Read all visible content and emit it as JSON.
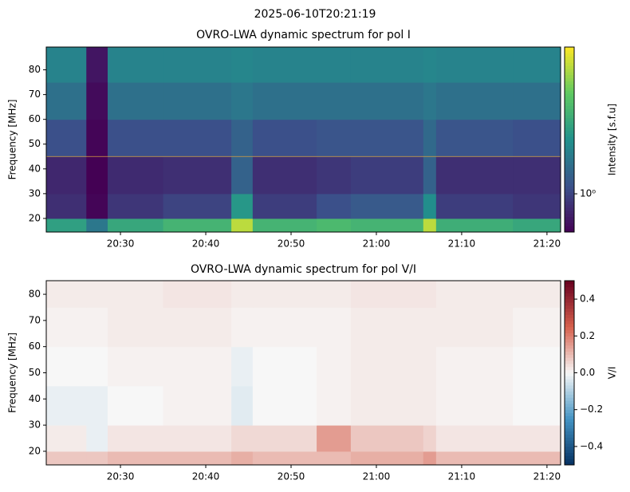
{
  "title": "2025-06-10T20:21:19",
  "chart_data": [
    {
      "type": "heatmap",
      "title": "OVRO-LWA dynamic spectrum for pol I",
      "ylabel": "Frequency [MHz]",
      "clabel": "Intensity [s.f.u]",
      "colormap": "viridis",
      "log_color": true,
      "clim": [
        0.6,
        7.1
      ],
      "cticks": [
        {
          "value": 1,
          "label": "10⁰"
        }
      ],
      "xlim": [
        21.3,
        81.6
      ],
      "ylim": [
        14.5,
        89.2
      ],
      "xticks": [
        {
          "value": 30,
          "label": "20:30"
        },
        {
          "value": 40,
          "label": "20:40"
        },
        {
          "value": 50,
          "label": "20:50"
        },
        {
          "value": 60,
          "label": "21:00"
        },
        {
          "value": 70,
          "label": "21:10"
        },
        {
          "value": 80,
          "label": "21:20"
        }
      ],
      "yticks": [
        20,
        30,
        40,
        50,
        60,
        70,
        80
      ],
      "hline": 45,
      "hline_color": "#d8a040",
      "x": [
        21.3,
        26,
        28.5,
        35,
        43,
        45.5,
        53,
        57,
        65.5,
        67,
        76,
        81.6
      ],
      "y": [
        14.5,
        20,
        30,
        45,
        60,
        75,
        89.2
      ],
      "values": [
        [
          2.4,
          1.6,
          2.6,
          3.0,
          5.5,
          3.0,
          3.2,
          3.0,
          5.5,
          2.8,
          2.6
        ],
        [
          0.85,
          0.62,
          0.9,
          1.0,
          2.2,
          0.95,
          1.1,
          1.2,
          2.0,
          0.95,
          0.9
        ],
        [
          0.8,
          0.6,
          0.82,
          0.85,
          1.3,
          0.85,
          0.9,
          0.95,
          1.3,
          0.85,
          0.85
        ],
        [
          1.1,
          0.62,
          1.1,
          1.1,
          1.3,
          1.1,
          1.15,
          1.15,
          1.4,
          1.15,
          1.1
        ],
        [
          1.5,
          0.65,
          1.5,
          1.5,
          1.6,
          1.5,
          1.5,
          1.5,
          1.6,
          1.5,
          1.5
        ],
        [
          1.8,
          0.7,
          1.8,
          1.8,
          1.85,
          1.8,
          1.8,
          1.8,
          1.85,
          1.8,
          1.8
        ]
      ]
    },
    {
      "type": "heatmap",
      "title": "OVRO-LWA dynamic spectrum for pol V/I",
      "ylabel": "Frequency [MHz]",
      "clabel": "V/I",
      "colormap": "RdBu_r",
      "log_color": false,
      "clim": [
        -0.5,
        0.5
      ],
      "cticks": [
        {
          "value": -0.4,
          "label": "−0.4"
        },
        {
          "value": -0.2,
          "label": "−0.2"
        },
        {
          "value": 0,
          "label": "0.0"
        },
        0.2,
        0.4
      ],
      "xlim": [
        21.3,
        81.6
      ],
      "ylim": [
        14.8,
        85.2
      ],
      "xticks": [
        {
          "value": 30,
          "label": "20:30"
        },
        {
          "value": 40,
          "label": "20:40"
        },
        {
          "value": 50,
          "label": "20:50"
        },
        {
          "value": 60,
          "label": "21:00"
        },
        {
          "value": 70,
          "label": "21:10"
        },
        {
          "value": 80,
          "label": "21:20"
        }
      ],
      "yticks": [
        20,
        30,
        40,
        50,
        60,
        70,
        80
      ],
      "x": [
        21.3,
        26,
        28.5,
        35,
        43,
        45.5,
        53,
        57,
        65.5,
        67,
        76,
        81.6
      ],
      "y": [
        14.8,
        20,
        30,
        45,
        60,
        75,
        85.2
      ],
      "values": [
        [
          0.08,
          0.08,
          0.1,
          0.1,
          0.12,
          0.1,
          0.1,
          0.12,
          0.15,
          0.1,
          0.1
        ],
        [
          0.02,
          -0.02,
          0.03,
          0.03,
          0.05,
          0.05,
          0.15,
          0.08,
          0.06,
          0.03,
          0.03
        ],
        [
          -0.02,
          -0.02,
          0.0,
          0.01,
          -0.03,
          0.0,
          0.01,
          0.02,
          0.02,
          0.01,
          0.0
        ],
        [
          0.0,
          0.0,
          0.01,
          0.01,
          -0.02,
          0.0,
          0.01,
          0.02,
          0.02,
          0.01,
          0.0
        ],
        [
          0.01,
          0.01,
          0.02,
          0.02,
          0.01,
          0.01,
          0.01,
          0.02,
          0.02,
          0.02,
          0.01
        ],
        [
          0.02,
          0.02,
          0.02,
          0.03,
          0.02,
          0.02,
          0.02,
          0.03,
          0.03,
          0.02,
          0.02
        ]
      ]
    }
  ]
}
